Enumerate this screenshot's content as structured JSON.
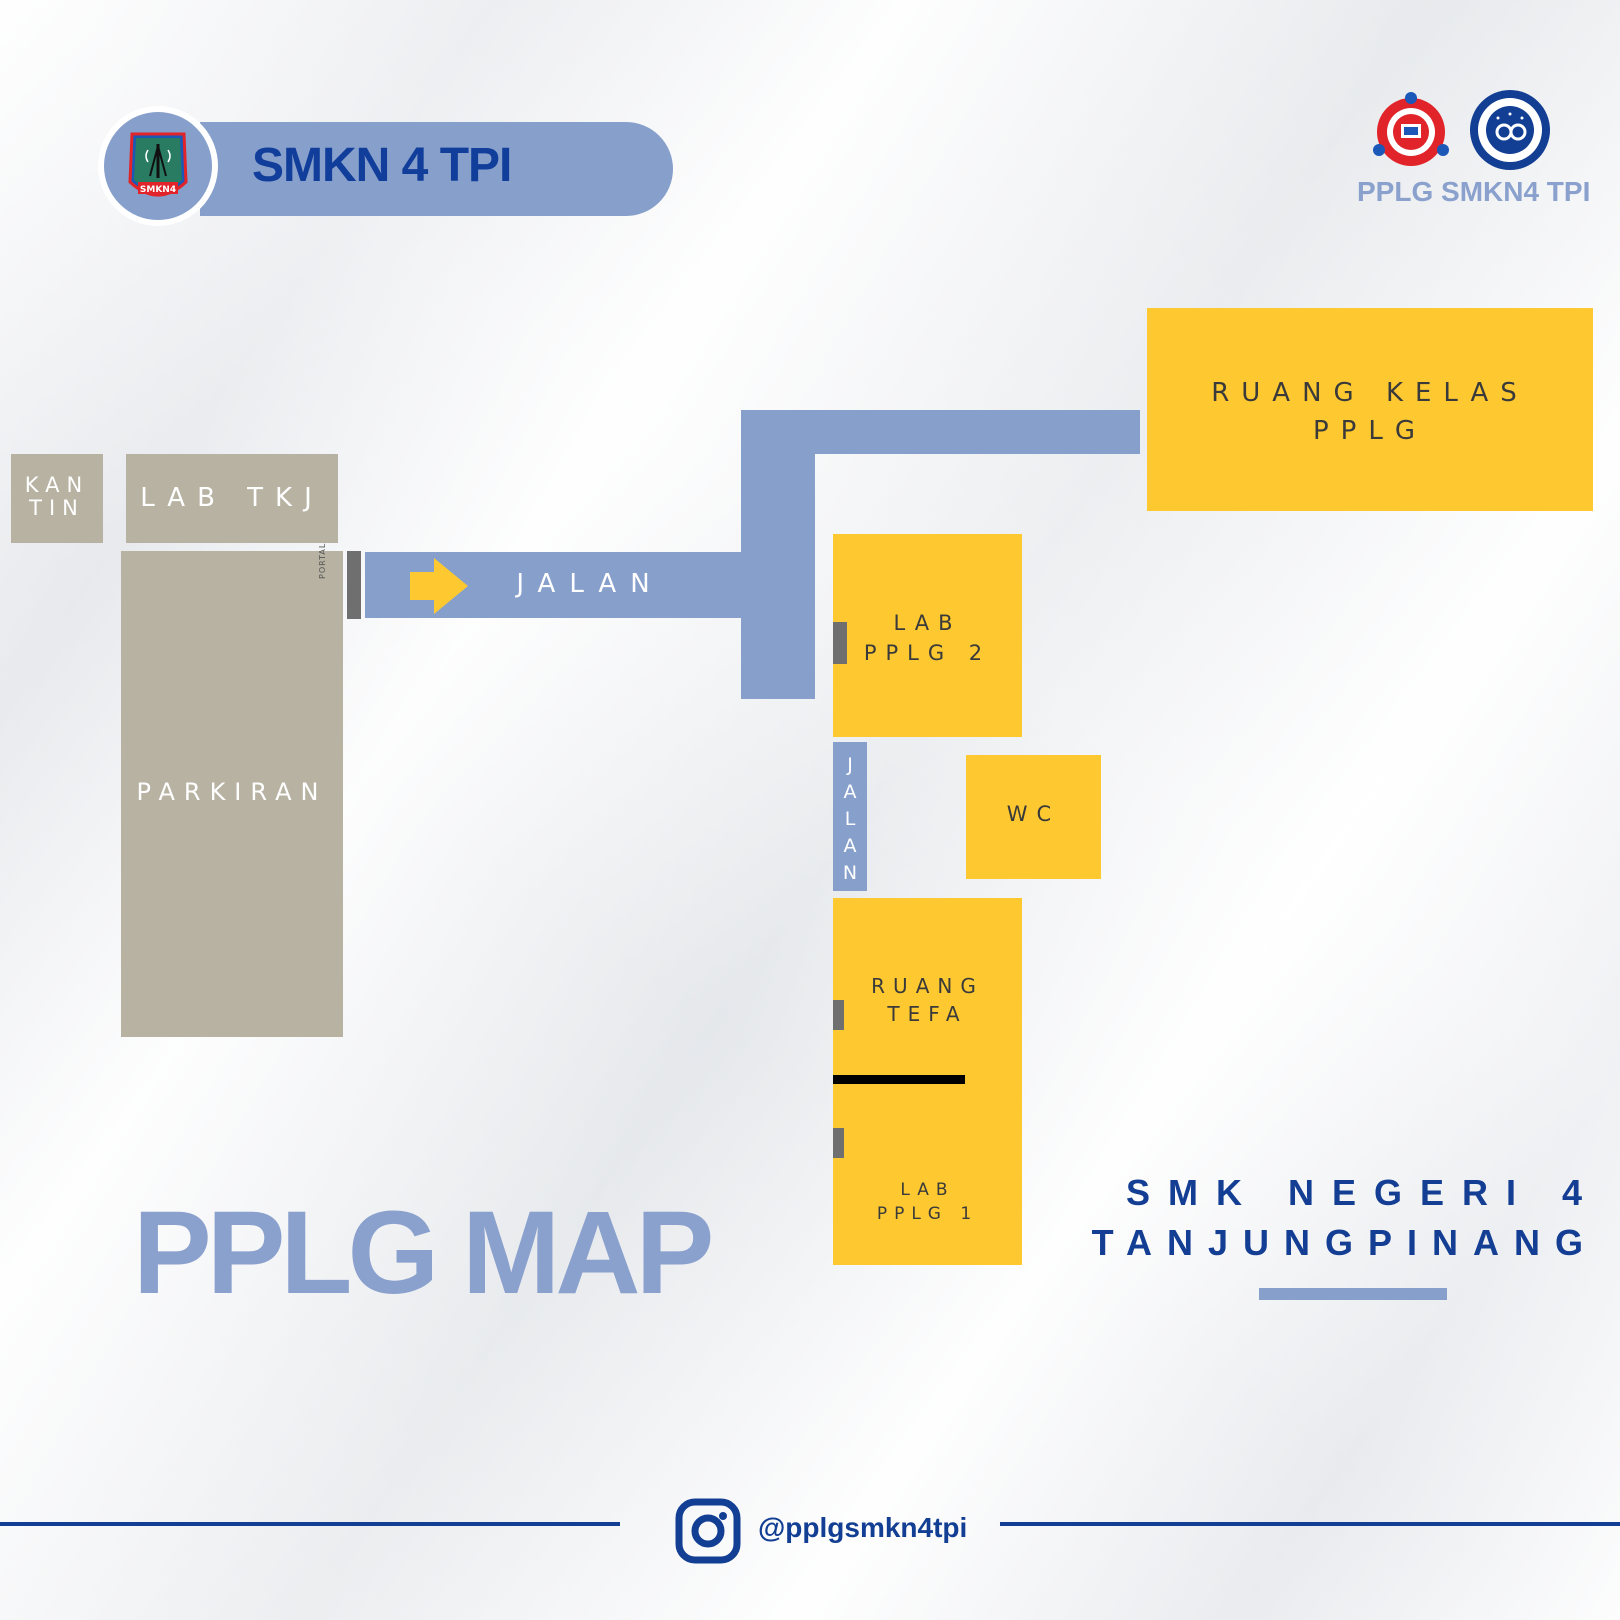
{
  "header": {
    "title": "SMKN 4 TPI",
    "logo_icon": "smkn4-school-emblem-icon",
    "logo_text": "SMKN4"
  },
  "brand": {
    "label": "PPLG SMKN4 TPI",
    "logo_left_icon": "pplg-gear-emblem-icon",
    "logo_right_icon": "pengembangan-perangkat-lunak-emblem-icon"
  },
  "map": {
    "kantin": "KAN\nTIN",
    "lab_tkj": "LAB TKJ",
    "parkiran": "PARKIRAN",
    "portal": "PORTAL",
    "jalan_main": "JALAN",
    "jalan_vertical": "J\nA\nL\nA\nN",
    "ruang_kelas": "RUANG KELAS\nPPLG",
    "lab_pplg_2": "LAB\nPPLG 2",
    "wc": "WC",
    "ruang_tefa": "RUANG\nTEFA",
    "lab_pplg_1": "LAB\nPPLG 1",
    "arrow_icon": "arrow-right-icon"
  },
  "title": "PPLG MAP",
  "school": {
    "line1": "SMK NEGERI 4",
    "line2": "TANJUNGPINANG"
  },
  "footer": {
    "instagram_icon": "instagram-icon",
    "handle": "@pplgsmkn4tpi"
  },
  "colors": {
    "room": "#fec930",
    "road": "#879fcb",
    "grey_area": "#b7b2a2",
    "navy": "#123e93",
    "arrow": "#fec930"
  }
}
